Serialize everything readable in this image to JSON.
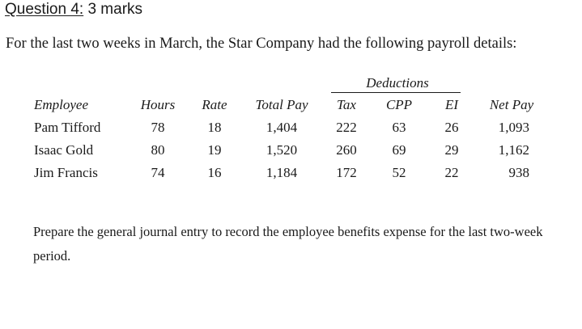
{
  "question": {
    "label": "Question 4:",
    "marks": "3 marks"
  },
  "intro": "For the last two weeks in March, the Star Company had the following payroll details:",
  "table": {
    "group_header": "Deductions",
    "headers": {
      "employee": "Employee",
      "hours": "Hours",
      "rate": "Rate",
      "total_pay": "Total Pay",
      "tax": "Tax",
      "cpp": "CPP",
      "ei": "EI",
      "net_pay": "Net Pay"
    },
    "rows": [
      {
        "employee": "Pam Tifford",
        "hours": "78",
        "rate": "18",
        "total_pay": "1,404",
        "tax": "222",
        "cpp": "63",
        "ei": "26",
        "net_pay": "1,093"
      },
      {
        "employee": "Isaac Gold",
        "hours": "80",
        "rate": "19",
        "total_pay": "1,520",
        "tax": "260",
        "cpp": "69",
        "ei": "29",
        "net_pay": "1,162"
      },
      {
        "employee": "Jim Francis",
        "hours": "74",
        "rate": "16",
        "total_pay": "1,184",
        "tax": "172",
        "cpp": "52",
        "ei": "22",
        "net_pay": "938"
      }
    ]
  },
  "prompt": "Prepare the general journal entry to record the employee benefits expense for the last two-week period."
}
